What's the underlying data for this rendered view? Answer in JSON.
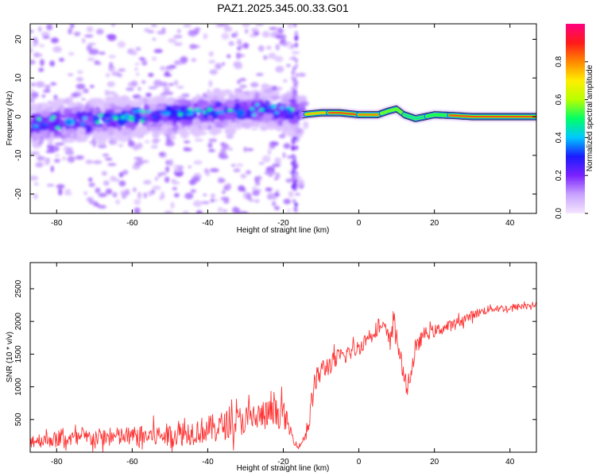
{
  "figure_title": "PAZ1.2025.345.00.33.G01",
  "chart_data": [
    {
      "type": "heatmap",
      "title": "PAZ1.2025.345.00.33.G01",
      "xlabel": "Height of straight line (km)",
      "ylabel": "Frequency (Hz)",
      "xlim": [
        -87,
        47
      ],
      "ylim": [
        -25,
        24
      ],
      "x_ticks": [
        -80,
        -60,
        -40,
        -20,
        0,
        20,
        40
      ],
      "y_ticks": [
        -20,
        -10,
        0,
        10,
        20
      ],
      "colorbar": {
        "label": "Normalized spectral amplitude",
        "range": [
          0.0,
          1.0
        ],
        "ticks": [
          0.0,
          0.2,
          0.4,
          0.6,
          0.8
        ],
        "colormap": [
          "#f4e6ff",
          "#c9a3ff",
          "#7b22ff",
          "#1b1bff",
          "#00c8ff",
          "#00ff66",
          "#b8ff00",
          "#ffee00",
          "#ff8800",
          "#ff1a1a",
          "#ff0080"
        ]
      },
      "ridge": {
        "comment": "dominant frequency track (Hz) vs height (km)",
        "x": [
          -87,
          -80,
          -70,
          -60,
          -50,
          -40,
          -30,
          -25,
          -20,
          -17,
          -15,
          -10,
          -5,
          0,
          5,
          8,
          10,
          12,
          15,
          20,
          25,
          30,
          40,
          47
        ],
        "y": [
          -2,
          -1.5,
          -1,
          0,
          0.5,
          1,
          1.5,
          2,
          2,
          0.5,
          0.5,
          1,
          1,
          0.5,
          0.5,
          1.5,
          2,
          0.5,
          -0.5,
          0.5,
          0.3,
          0,
          0,
          0
        ]
      }
    },
    {
      "type": "line",
      "xlabel": "Height of straight line (km)",
      "ylabel": "SNR (10 * v/v)",
      "xlim": [
        -87,
        47
      ],
      "ylim": [
        0,
        2900
      ],
      "x_ticks": [
        -80,
        -60,
        -40,
        -20,
        0,
        20,
        40
      ],
      "y_ticks": [
        500,
        1000,
        1500,
        2000,
        2500
      ],
      "series": [
        {
          "name": "SNR",
          "color": "#ff3333",
          "x": [
            -87,
            -80,
            -70,
            -60,
            -50,
            -45,
            -40,
            -35,
            -30,
            -25,
            -20,
            -17,
            -16,
            -15,
            -13,
            -12,
            -10,
            -5,
            0,
            3,
            5,
            7,
            8,
            9,
            10,
            11,
            12,
            13,
            15,
            17,
            20,
            25,
            30,
            35,
            40,
            45,
            47
          ],
          "y": [
            180,
            200,
            220,
            240,
            260,
            300,
            350,
            420,
            500,
            560,
            600,
            150,
            80,
            150,
            500,
            1000,
            1250,
            1450,
            1600,
            1800,
            1900,
            1900,
            1700,
            2000,
            1800,
            1450,
            1100,
            1000,
            1550,
            1800,
            1850,
            1950,
            2100,
            2200,
            2200,
            2250,
            2250
          ],
          "noise_amplitude": [
            160,
            170,
            200,
            220,
            260,
            280,
            300,
            320,
            330,
            340,
            320,
            60,
            40,
            80,
            250,
            300,
            250,
            200,
            180,
            170,
            160,
            150,
            200,
            350,
            250,
            200,
            200,
            200,
            180,
            150,
            140,
            120,
            100,
            90,
            80,
            70,
            70
          ]
        }
      ]
    }
  ]
}
